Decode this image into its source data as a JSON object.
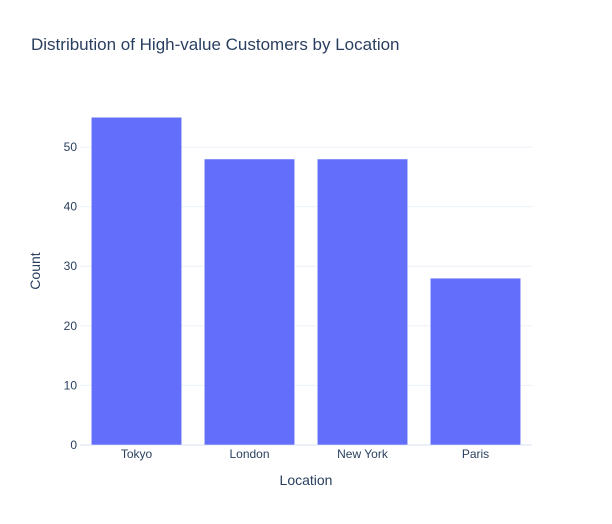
{
  "chart_data": {
    "type": "bar",
    "title": "Distribution of High-value Customers by Location",
    "xlabel": "Location",
    "ylabel": "Count",
    "categories": [
      "Tokyo",
      "London",
      "New York",
      "Paris"
    ],
    "values": [
      55,
      48,
      48,
      28
    ],
    "ylim": [
      0,
      57.9
    ],
    "yticks": [
      0,
      10,
      20,
      30,
      40,
      50
    ],
    "grid": true,
    "bar_color": "#636efa",
    "legend": "none"
  }
}
